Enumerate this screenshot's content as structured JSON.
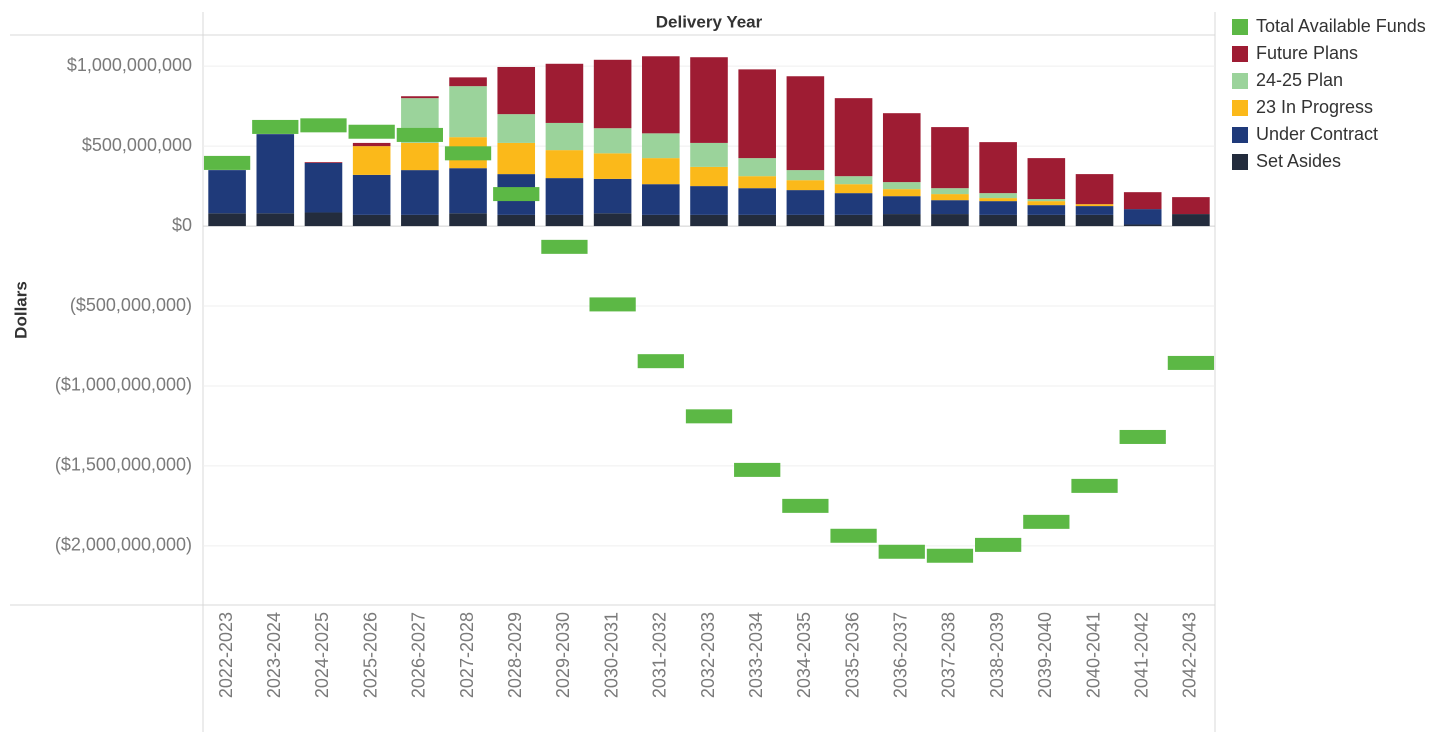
{
  "chart_data": {
    "type": "bar",
    "stacked": true,
    "x_title": "Delivery Year",
    "y_title": "Dollars",
    "categories": [
      "2022-2023",
      "2023-2024",
      "2024-2025",
      "2025-2026",
      "2026-2027",
      "2027-2028",
      "2028-2029",
      "2029-2030",
      "2030-2031",
      "2031-2032",
      "2032-2033",
      "2033-2034",
      "2034-2035",
      "2035-2036",
      "2036-2037",
      "2037-2038",
      "2038-2039",
      "2039-2040",
      "2040-2041",
      "2041-2042",
      "2042-2043"
    ],
    "series": [
      {
        "name": "Total Available Funds",
        "color": "#5cb845",
        "mark": "tick",
        "values": [
          395000000,
          620000000,
          630000000,
          590000000,
          570000000,
          455000000,
          200000000,
          -130000000,
          -490000000,
          -845000000,
          -1190000000,
          -1525000000,
          -1750000000,
          -1937000000,
          -2037000000,
          -2062000000,
          -1994000000,
          -1850000000,
          -1625000000,
          -1319000000,
          -856000000
        ]
      },
      {
        "name": "Future Plans",
        "color": "#9e1c33",
        "mark": "bar",
        "values": [
          0,
          0,
          5000000,
          20000000,
          12000000,
          55000000,
          295000000,
          370000000,
          428000000,
          482000000,
          536000000,
          555000000,
          587000000,
          488000000,
          431000000,
          382000000,
          319000000,
          256000000,
          188000000,
          106000000,
          106000000
        ]
      },
      {
        "name": "24-25 Plan",
        "color": "#9bd39b",
        "mark": "bar",
        "values": [
          0,
          0,
          0,
          0,
          280000000,
          319000000,
          180000000,
          170000000,
          157000000,
          155000000,
          150000000,
          113000000,
          63000000,
          50000000,
          44000000,
          37000000,
          31000000,
          13000000,
          0,
          0,
          0
        ]
      },
      {
        "name": "23 In Progress",
        "color": "#fbb91a",
        "mark": "bar",
        "values": [
          0,
          0,
          0,
          180000000,
          170000000,
          194000000,
          195000000,
          175000000,
          160000000,
          163000000,
          120000000,
          75000000,
          62000000,
          56000000,
          44000000,
          38000000,
          19000000,
          25000000,
          12000000,
          0,
          0
        ]
      },
      {
        "name": "Under Contract",
        "color": "#1f3a7a",
        "mark": "bar",
        "values": [
          270000000,
          495000000,
          310000000,
          250000000,
          280000000,
          282000000,
          255000000,
          230000000,
          215000000,
          192000000,
          180000000,
          167000000,
          155000000,
          136000000,
          112000000,
          87000000,
          86000000,
          61000000,
          55000000,
          96000000,
          0
        ]
      },
      {
        "name": "Set Asides",
        "color": "#232c3d",
        "mark": "bar",
        "values": [
          80000000,
          80000000,
          85000000,
          70000000,
          70000000,
          80000000,
          70000000,
          70000000,
          80000000,
          70000000,
          70000000,
          70000000,
          70000000,
          70000000,
          75000000,
          75000000,
          70000000,
          70000000,
          70000000,
          10000000,
          75000000
        ]
      }
    ],
    "ylim": [
      -2370000000,
      1195000000
    ],
    "yticks": [
      {
        "value": -2000000000,
        "label": "($2,000,000,000)"
      },
      {
        "value": -1500000000,
        "label": "($1,500,000,000)"
      },
      {
        "value": -1000000000,
        "label": "($1,000,000,000)"
      },
      {
        "value": -500000000,
        "label": "($500,000,000)"
      },
      {
        "value": 0,
        "label": "$0"
      },
      {
        "value": 500000000,
        "label": "$500,000,000"
      },
      {
        "value": 1000000000,
        "label": "$1,000,000,000"
      }
    ],
    "grid": true,
    "legend": "right"
  }
}
